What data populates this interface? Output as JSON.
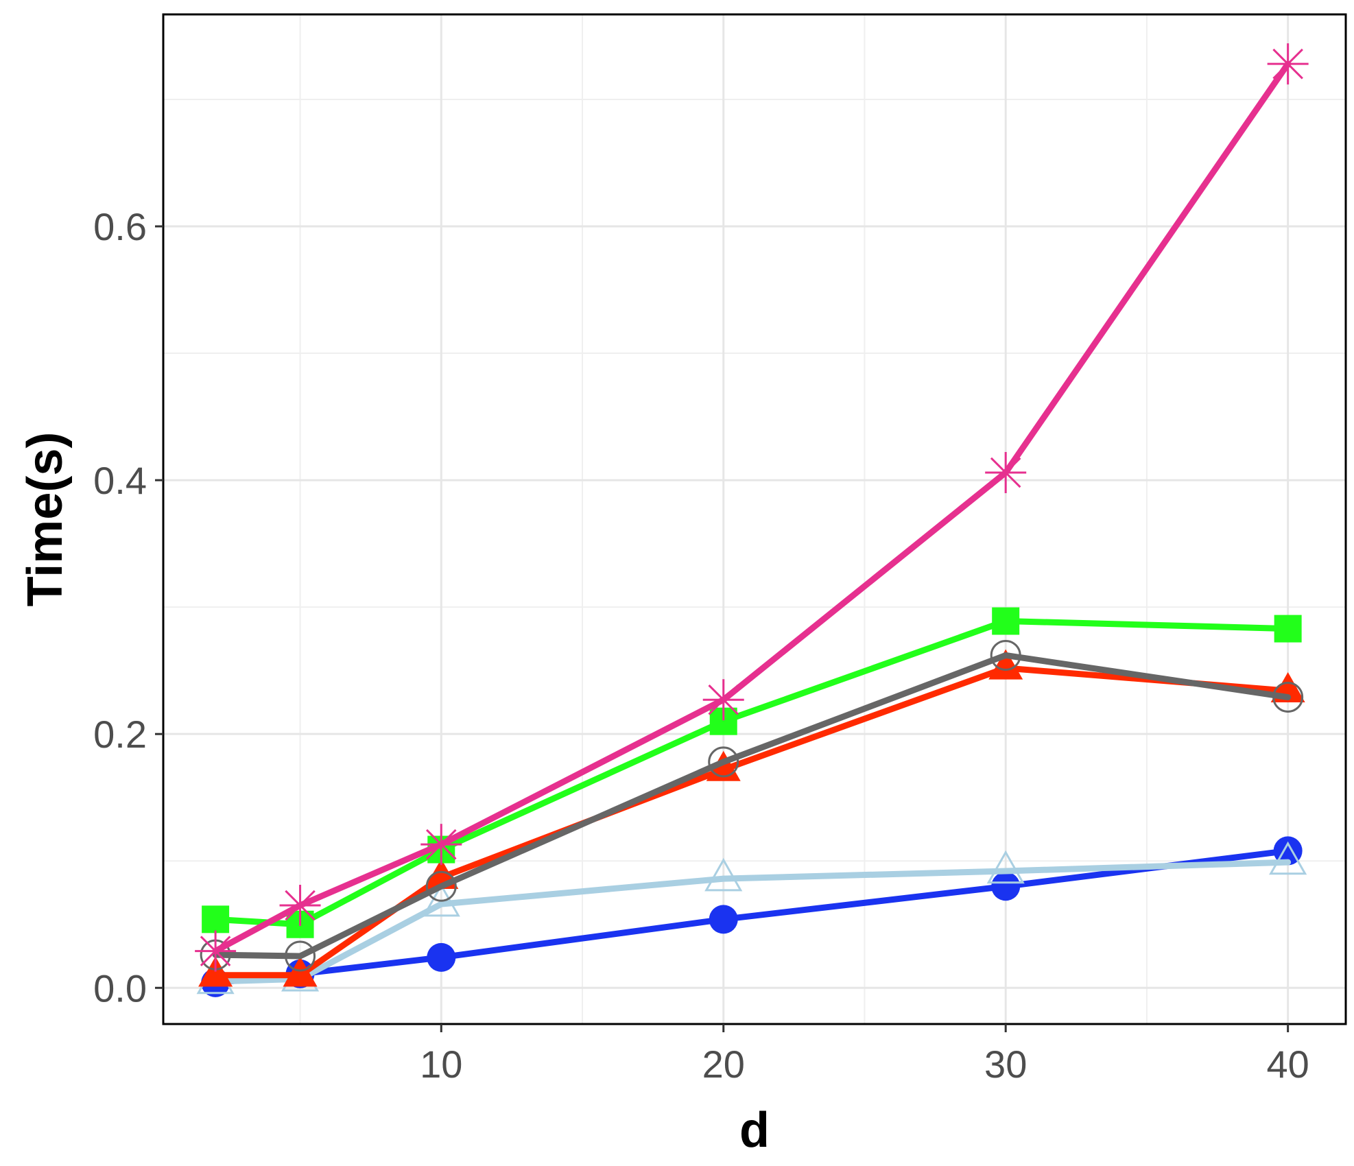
{
  "chart_data": {
    "type": "line",
    "title": "",
    "xlabel": "d",
    "ylabel": "Time(s)",
    "xlim": [
      0.15,
      42.05
    ],
    "ylim": [
      -0.0285,
      0.767
    ],
    "xticks": [
      10,
      20,
      30,
      40
    ],
    "xtick_labels": [
      "10",
      "20",
      "30",
      "40"
    ],
    "xminor": [
      15,
      25,
      35
    ],
    "yticks": [
      0.0,
      0.2,
      0.4,
      0.6
    ],
    "ytick_labels": [
      "0.0",
      "0.2",
      "0.4",
      "0.6"
    ],
    "yminor": [
      0.1,
      0.3,
      0.5,
      0.7
    ],
    "grid": true,
    "legend": "none",
    "x": [
      2,
      5,
      10,
      20,
      30,
      40
    ],
    "series": [
      {
        "color": "#1a33f0",
        "marker": "circle-filled",
        "values": [
          0.004,
          0.011,
          0.024,
          0.054,
          0.08,
          0.108
        ]
      },
      {
        "color": "#a9cfe2",
        "marker": "triangle-open",
        "values": [
          0.005,
          0.007,
          0.066,
          0.086,
          0.092,
          0.099
        ]
      },
      {
        "color": "#ff2a00",
        "marker": "triangle-filled",
        "values": [
          0.01,
          0.01,
          0.087,
          0.172,
          0.252,
          0.234
        ]
      },
      {
        "color": "#666666",
        "marker": "circle-open",
        "values": [
          0.026,
          0.025,
          0.08,
          0.178,
          0.262,
          0.229
        ]
      },
      {
        "color": "#22ff1a",
        "marker": "square-filled",
        "values": [
          0.054,
          0.05,
          0.109,
          0.21,
          0.289,
          0.283
        ]
      },
      {
        "color": "#e6308f",
        "marker": "asterisk",
        "values": [
          0.029,
          0.065,
          0.113,
          0.227,
          0.406,
          0.728
        ]
      }
    ]
  }
}
